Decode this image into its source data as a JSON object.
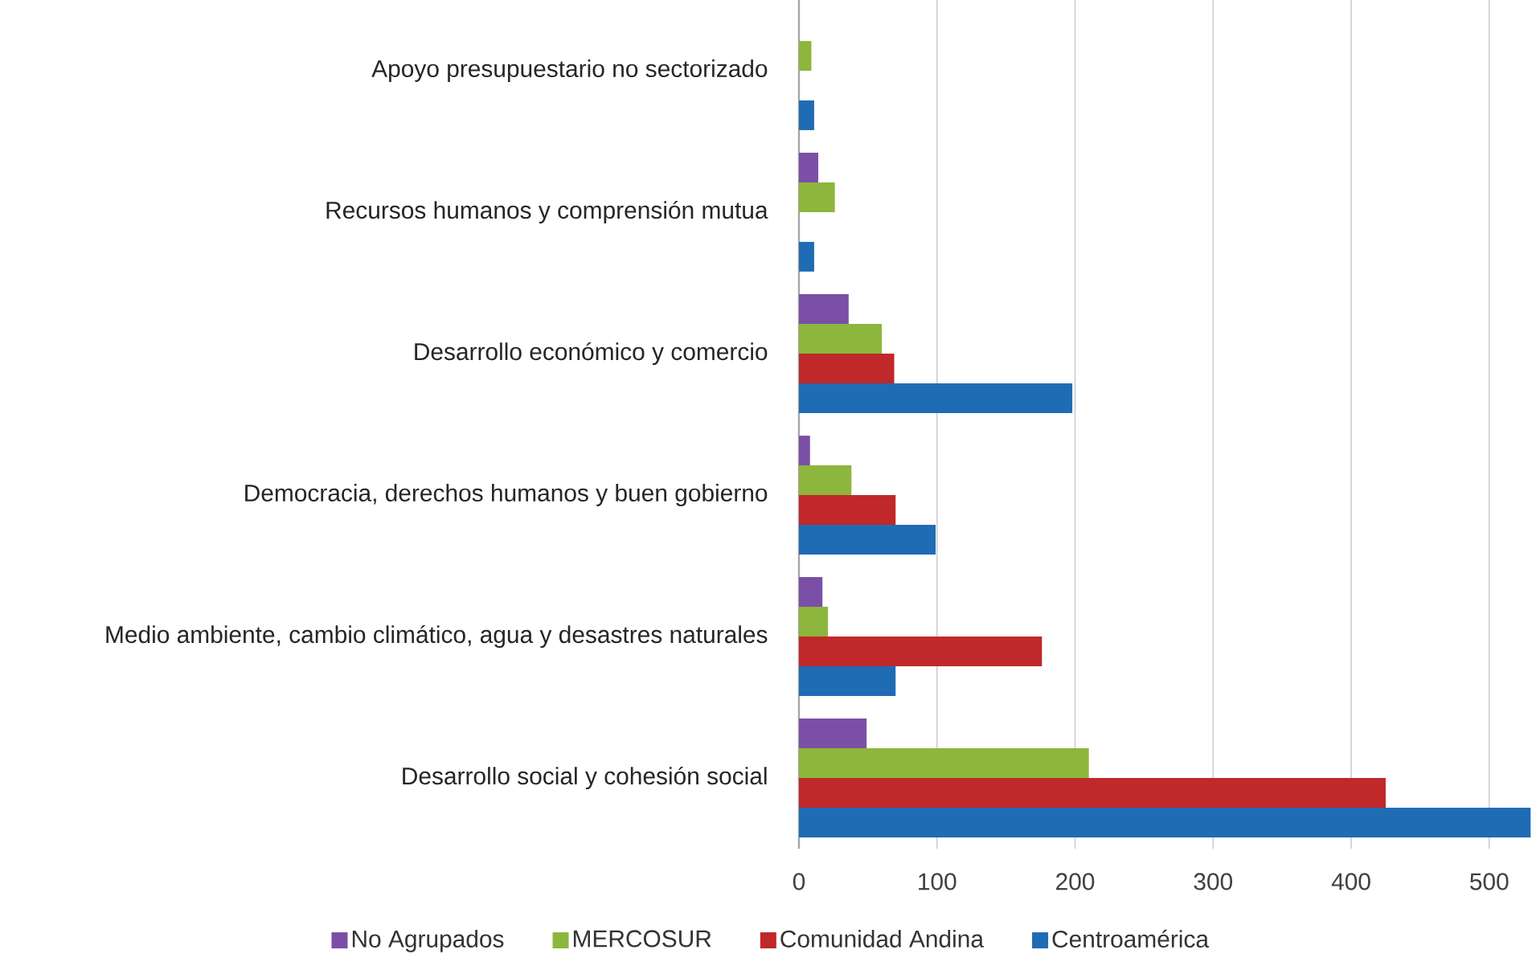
{
  "chart_data": {
    "type": "bar",
    "orientation": "horizontal",
    "categories": [
      "Apoyo presupuestario no sectorizado",
      "Recursos humanos y comprensión mutua",
      "Desarrollo económico y comercio",
      "Democracia, derechos humanos  y buen gobierno",
      "Medio ambiente, cambio climático, agua y desastres naturales",
      "Desarrollo social y cohesión social"
    ],
    "series": [
      {
        "name": "No Agrupados",
        "color": "#7b4fa6",
        "values": [
          0,
          14,
          36,
          8,
          17,
          49
        ]
      },
      {
        "name": "MERCOSUR",
        "color": "#8db63c",
        "values": [
          9,
          26,
          60,
          38,
          21,
          210
        ]
      },
      {
        "name": "Comunidad Andina",
        "color": "#c0282a",
        "values": [
          0,
          0,
          69,
          70,
          176,
          425
        ]
      },
      {
        "name": "Centroamérica",
        "color": "#1f6cb4",
        "values": [
          11,
          11,
          198,
          99,
          70,
          530
        ]
      }
    ],
    "xlim": [
      0,
      531
    ],
    "xticks": [
      0,
      100,
      200,
      300,
      400,
      500
    ],
    "grid": "x",
    "legend": "bottom"
  }
}
